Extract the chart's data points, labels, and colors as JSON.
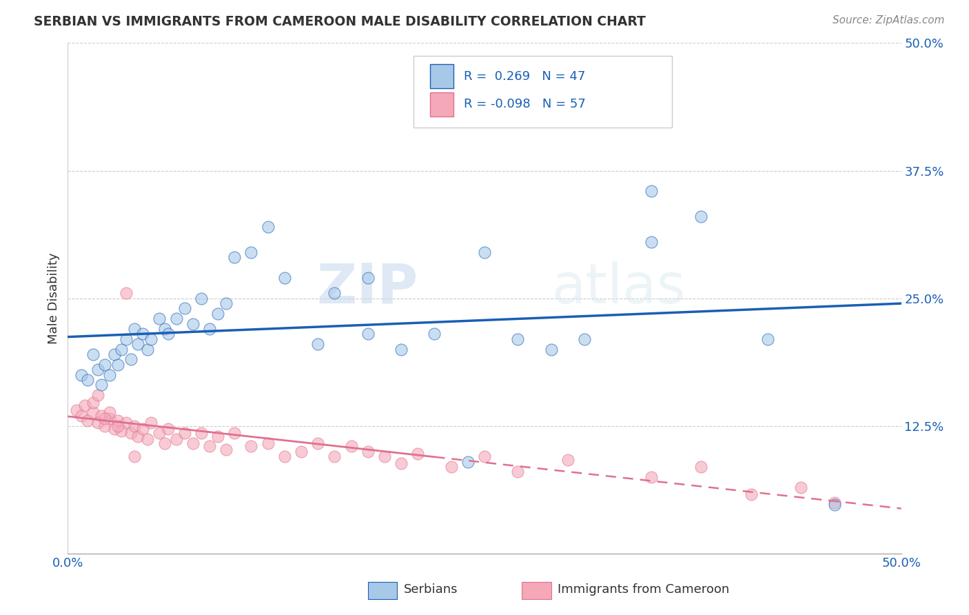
{
  "title": "SERBIAN VS IMMIGRANTS FROM CAMEROON MALE DISABILITY CORRELATION CHART",
  "source": "Source: ZipAtlas.com",
  "ylabel": "Male Disability",
  "watermark": "ZIPatlas",
  "xlim": [
    0.0,
    0.5
  ],
  "ylim": [
    0.0,
    0.5
  ],
  "yticks": [
    0.0,
    0.125,
    0.25,
    0.375,
    0.5
  ],
  "ytick_labels": [
    "",
    "12.5%",
    "25.0%",
    "37.5%",
    "50.0%"
  ],
  "r_serbian": 0.269,
  "n_serbian": 47,
  "r_cameroon": -0.098,
  "n_cameroon": 57,
  "serbian_color": "#a8c8e8",
  "cameroon_color": "#f4a8b8",
  "trend_serbian_color": "#1a5fb4",
  "trend_cameroon_color": "#e07090",
  "background_color": "#ffffff",
  "serbian_x": [
    0.008,
    0.012,
    0.015,
    0.018,
    0.02,
    0.022,
    0.025,
    0.028,
    0.03,
    0.032,
    0.035,
    0.038,
    0.04,
    0.042,
    0.045,
    0.048,
    0.05,
    0.055,
    0.058,
    0.06,
    0.065,
    0.07,
    0.075,
    0.08,
    0.085,
    0.09,
    0.095,
    0.1,
    0.11,
    0.12,
    0.13,
    0.15,
    0.16,
    0.18,
    0.2,
    0.22,
    0.25,
    0.27,
    0.29,
    0.31,
    0.35,
    0.38,
    0.42,
    0.46,
    0.35,
    0.18,
    0.24
  ],
  "serbian_y": [
    0.175,
    0.17,
    0.195,
    0.18,
    0.165,
    0.185,
    0.175,
    0.195,
    0.185,
    0.2,
    0.21,
    0.19,
    0.22,
    0.205,
    0.215,
    0.2,
    0.21,
    0.23,
    0.22,
    0.215,
    0.23,
    0.24,
    0.225,
    0.25,
    0.22,
    0.235,
    0.245,
    0.29,
    0.295,
    0.32,
    0.27,
    0.205,
    0.255,
    0.215,
    0.2,
    0.215,
    0.295,
    0.21,
    0.2,
    0.21,
    0.305,
    0.33,
    0.21,
    0.048,
    0.355,
    0.27,
    0.09
  ],
  "cameroon_x": [
    0.005,
    0.008,
    0.01,
    0.012,
    0.015,
    0.018,
    0.02,
    0.022,
    0.025,
    0.028,
    0.03,
    0.032,
    0.035,
    0.038,
    0.04,
    0.042,
    0.045,
    0.048,
    0.05,
    0.055,
    0.058,
    0.06,
    0.065,
    0.07,
    0.075,
    0.08,
    0.085,
    0.09,
    0.095,
    0.1,
    0.11,
    0.12,
    0.13,
    0.14,
    0.15,
    0.16,
    0.17,
    0.18,
    0.19,
    0.2,
    0.21,
    0.23,
    0.25,
    0.27,
    0.3,
    0.35,
    0.38,
    0.41,
    0.44,
    0.46,
    0.015,
    0.025,
    0.035,
    0.022,
    0.018,
    0.03,
    0.04
  ],
  "cameroon_y": [
    0.14,
    0.135,
    0.145,
    0.13,
    0.138,
    0.128,
    0.135,
    0.125,
    0.132,
    0.122,
    0.13,
    0.12,
    0.128,
    0.118,
    0.125,
    0.115,
    0.122,
    0.112,
    0.128,
    0.118,
    0.108,
    0.122,
    0.112,
    0.118,
    0.108,
    0.118,
    0.105,
    0.115,
    0.102,
    0.118,
    0.105,
    0.108,
    0.095,
    0.1,
    0.108,
    0.095,
    0.105,
    0.1,
    0.095,
    0.088,
    0.098,
    0.085,
    0.095,
    0.08,
    0.092,
    0.075,
    0.085,
    0.058,
    0.065,
    0.05,
    0.148,
    0.138,
    0.255,
    0.132,
    0.155,
    0.125,
    0.095
  ]
}
